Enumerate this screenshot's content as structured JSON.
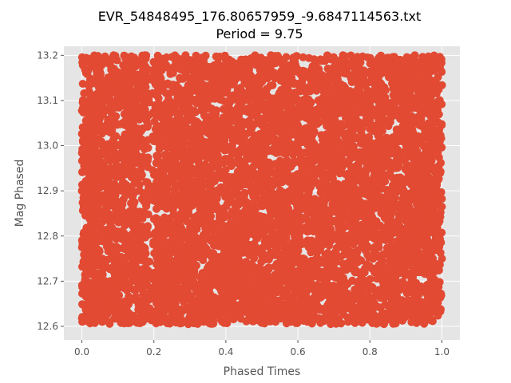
{
  "chart_data": {
    "type": "scatter",
    "title": "EVR_54848495_176.80657959_-9.6847114563.txt",
    "subtitle": "Period = 9.75",
    "xlabel": "Phased Times",
    "ylabel": "Mag Phased",
    "xlim": [
      -0.05,
      1.05
    ],
    "ylim": [
      12.57,
      13.22
    ],
    "xticks": [
      "0.0",
      "0.2",
      "0.4",
      "0.6",
      "0.8",
      "1.0"
    ],
    "yticks": [
      "12.6",
      "12.7",
      "12.8",
      "12.9",
      "13.0",
      "13.1",
      "13.2"
    ],
    "grid": true,
    "background": "#E5E5E5",
    "marker_color": "#E24A33",
    "x_range": [
      0.0,
      1.0
    ],
    "y_range": [
      12.605,
      13.2
    ],
    "series": [
      {
        "x": [
          0.0,
          0.012,
          0.025,
          0.038,
          0.05,
          0.063,
          0.075,
          0.088,
          0.1,
          0.113,
          0.125,
          0.138,
          0.15,
          0.163,
          0.175,
          0.188,
          0.2,
          0.213,
          0.225,
          0.238,
          0.25,
          0.263,
          0.275,
          0.288,
          0.3,
          0.313,
          0.325,
          0.338,
          0.35,
          0.363,
          0.375,
          0.388,
          0.4,
          0.413,
          0.425,
          0.438,
          0.45,
          0.463,
          0.475,
          0.488,
          0.5,
          0.513,
          0.525,
          0.538,
          0.55,
          0.563,
          0.575,
          0.588,
          0.6,
          0.613,
          0.625,
          0.638,
          0.65,
          0.663,
          0.675,
          0.688,
          0.7,
          0.713,
          0.725,
          0.738,
          0.75,
          0.763,
          0.775,
          0.788,
          0.8,
          0.813,
          0.825,
          0.838,
          0.85,
          0.863,
          0.875,
          0.888,
          0.9,
          0.913,
          0.925,
          0.938,
          0.95,
          0.963,
          0.975,
          0.988,
          1.0
        ],
        "y": [
          12.9,
          13.19,
          12.62,
          13.1,
          12.75,
          12.98,
          12.61,
          13.2,
          12.85,
          13.05,
          12.68,
          12.93,
          13.15,
          12.72,
          13.0,
          12.64,
          12.88,
          13.18,
          12.63,
          12.95,
          13.08,
          12.7,
          12.82,
          13.2,
          12.61,
          12.99,
          13.12,
          12.66,
          12.87,
          13.04,
          12.73,
          13.17,
          12.62,
          12.91,
          13.02,
          12.77,
          13.19,
          12.65,
          12.84,
          13.09,
          12.7,
          12.96,
          13.2,
          12.61,
          12.89,
          13.06,
          12.74,
          13.14,
          12.63,
          12.92,
          13.01,
          12.79,
          13.18,
          12.67,
          12.86,
          13.11,
          12.71,
          12.97,
          13.2,
          12.62,
          12.83,
          13.07,
          12.69,
          13.16,
          12.64,
          12.94,
          13.03,
          12.76,
          13.19,
          12.66,
          12.81,
          13.13,
          12.72,
          12.99,
          13.2,
          12.63,
          12.85,
          13.05,
          12.68,
          13.17,
          12.75
        ]
      }
    ]
  }
}
